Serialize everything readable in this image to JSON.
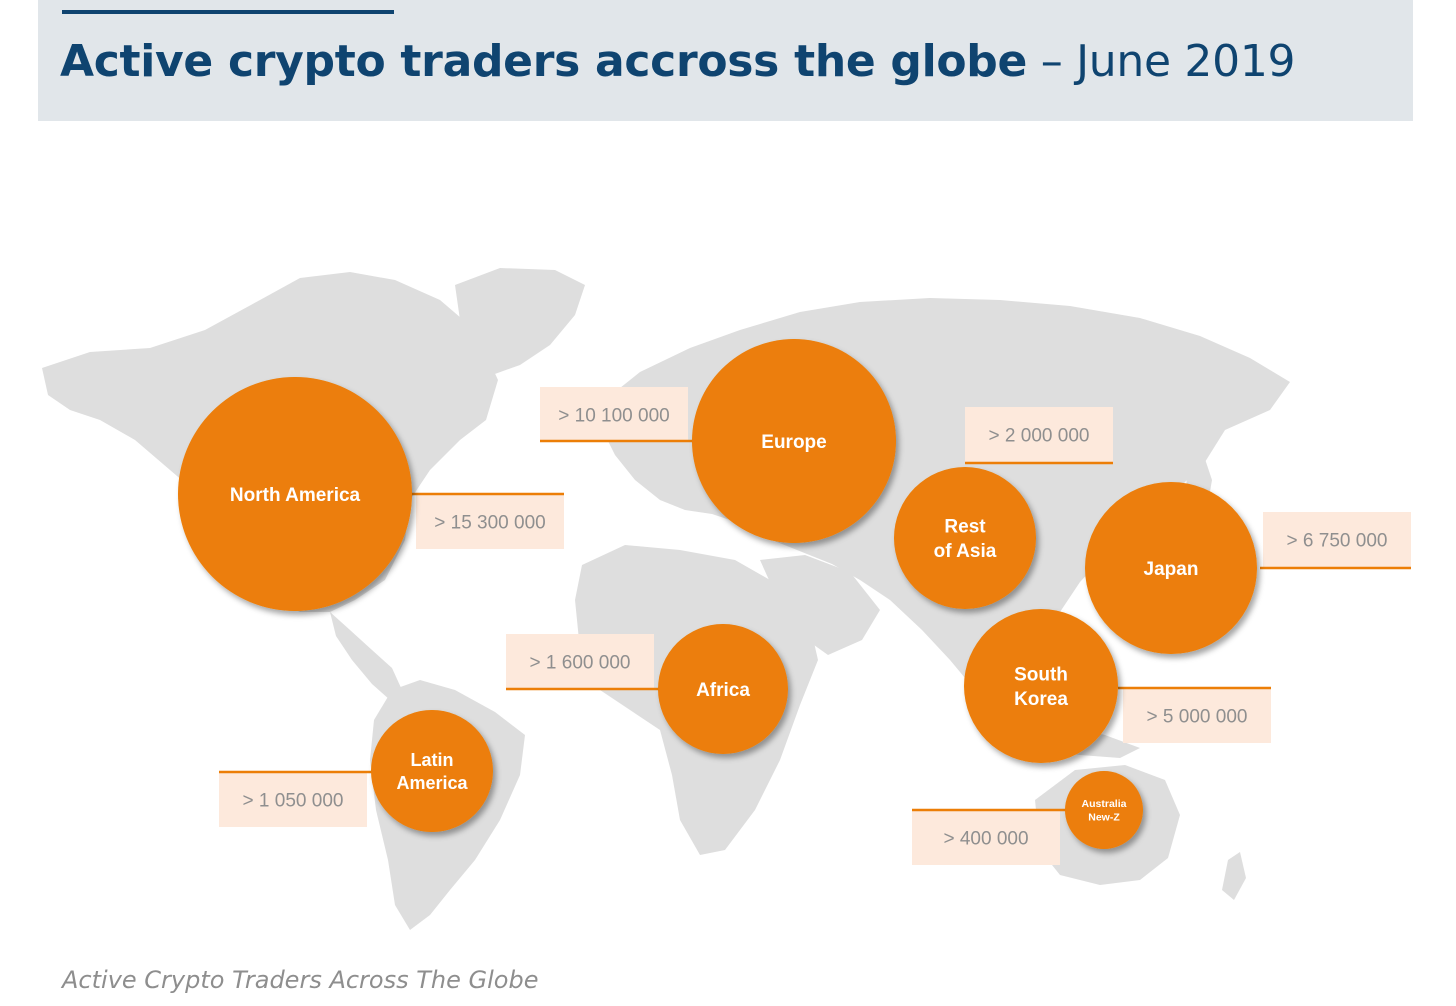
{
  "header": {
    "title_bold": "Active crypto traders accross the globe",
    "title_separator": "–",
    "title_date": "June 2019"
  },
  "caption": "Active Crypto Traders Across The Globe",
  "colors": {
    "bubble": "#ec7e07",
    "bubble_text": "#ffffff",
    "label_bg": "#fde9dc",
    "label_text": "#8f8f8f",
    "leader_line": "#ec7e07",
    "map_land": "#dedede",
    "title": "#0f4470",
    "header_bg": "#e1e6ea"
  },
  "chart_data": {
    "type": "bubble-map",
    "unit": "active traders",
    "regions": [
      {
        "key": "north_america",
        "name_lines": [
          "North America"
        ],
        "value_label": "> 15 300 000",
        "value": 15300000
      },
      {
        "key": "europe",
        "name_lines": [
          "Europe"
        ],
        "value_label": "> 10 100 000",
        "value": 10100000
      },
      {
        "key": "rest_of_asia",
        "name_lines": [
          "Rest",
          "of Asia"
        ],
        "value_label": "> 2 000 000",
        "value": 2000000
      },
      {
        "key": "japan",
        "name_lines": [
          "Japan"
        ],
        "value_label": "> 6 750 000",
        "value": 6750000
      },
      {
        "key": "africa",
        "name_lines": [
          "Africa"
        ],
        "value_label": "> 1 600 000",
        "value": 1600000
      },
      {
        "key": "south_korea",
        "name_lines": [
          "South",
          "Korea"
        ],
        "value_label": "> 5 000 000",
        "value": 5000000
      },
      {
        "key": "latin_america",
        "name_lines": [
          "Latin",
          "America"
        ],
        "value_label": "> 1 050 000",
        "value": 1050000
      },
      {
        "key": "australia_nz",
        "name_lines": [
          "Australia",
          "New-Z"
        ],
        "value_label": "> 400 000",
        "value": 400000
      }
    ]
  }
}
